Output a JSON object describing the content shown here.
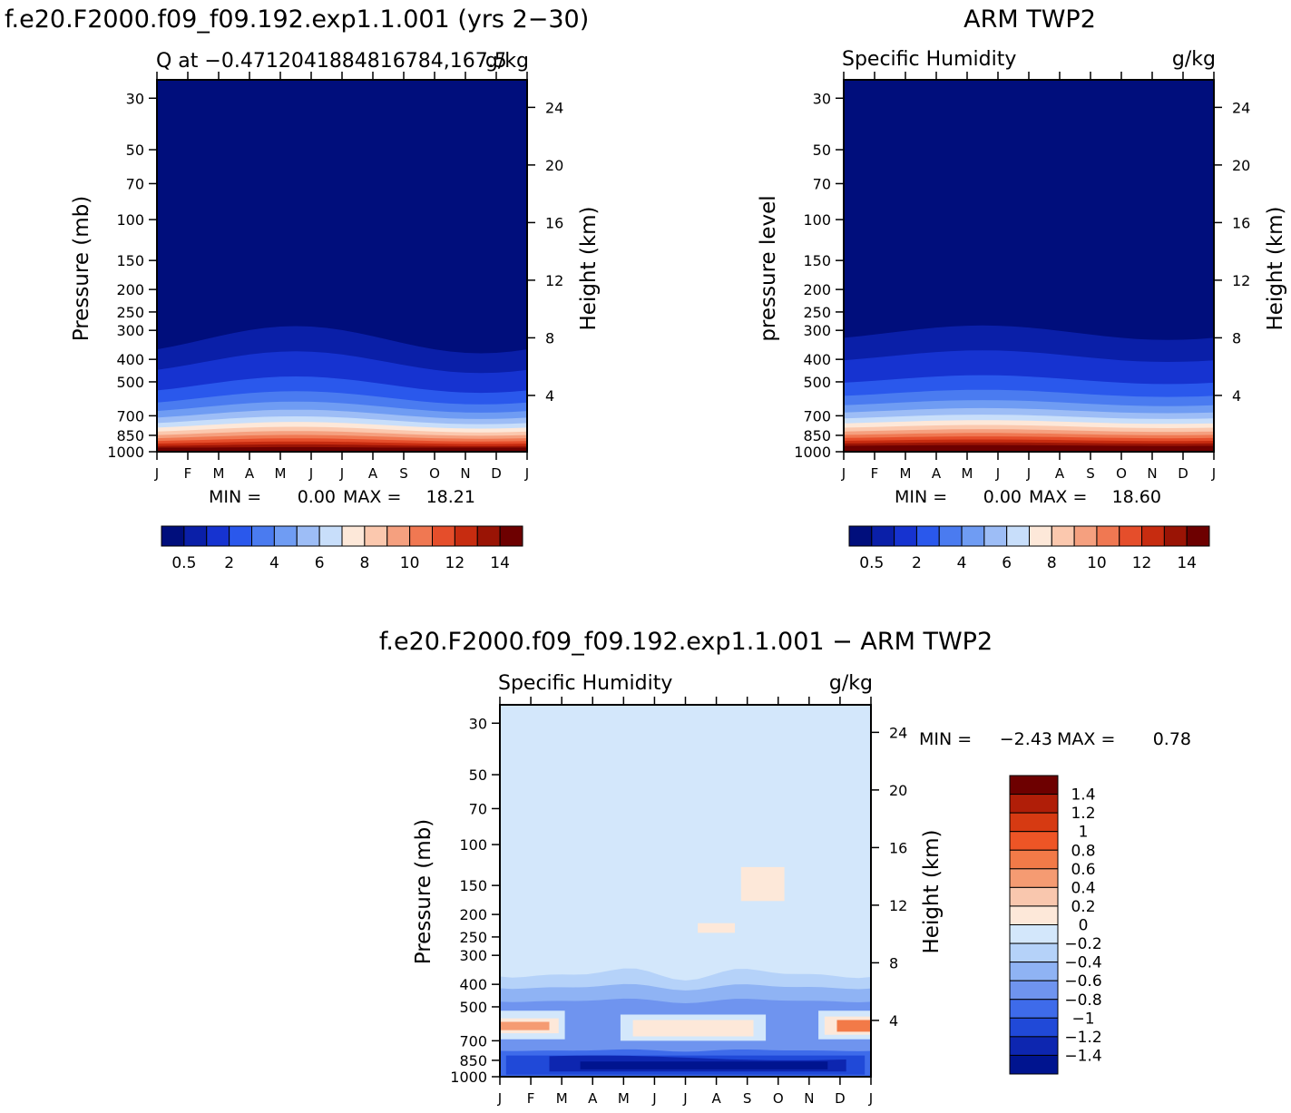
{
  "panels": [
    {
      "id": "model",
      "title": "f.e20.F2000.f09_f09.192.exp1.1.001 (yrs 2−30)",
      "subtitle_left": "Q at −0.4712041884816784,167.5",
      "subtitle_right": "g/kg",
      "left_axis_label": "Pressure (mb)",
      "right_axis_label": "Height (km)",
      "stats": {
        "min_label": "MIN =",
        "min": "0.00",
        "max_label": "MAX =",
        "max": "18.21"
      }
    },
    {
      "id": "obs",
      "title": "ARM TWP2",
      "subtitle_left": "Specific Humidity",
      "subtitle_right": "g/kg",
      "left_axis_label": "pressure level",
      "right_axis_label": "Height (km)",
      "stats": {
        "min_label": "MIN =",
        "min": "0.00",
        "max_label": "MAX =",
        "max": "18.60"
      }
    },
    {
      "id": "diff",
      "title": "f.e20.F2000.f09_f09.192.exp1.1.001 − ARM TWP2",
      "subtitle_left": "Specific Humidity",
      "subtitle_right": "g/kg",
      "left_axis_label": "Pressure (mb)",
      "right_axis_label": "Height (km)",
      "stats": {
        "min_label": "MIN =",
        "min": "−2.43",
        "max_label": "MAX =",
        "max": "0.78"
      }
    }
  ],
  "chart_data": {
    "type": "heatmap",
    "x_tick_labels": [
      "J",
      "F",
      "M",
      "A",
      "M",
      "J",
      "J",
      "A",
      "S",
      "O",
      "N",
      "D",
      "J"
    ],
    "pressure_ticks": [
      30,
      50,
      70,
      100,
      150,
      200,
      250,
      300,
      400,
      500,
      700,
      850,
      1000
    ],
    "pressure_tick_labels": [
      "30",
      "50",
      "70",
      "100",
      "150",
      "200",
      "250",
      "300",
      "400",
      "500",
      "700",
      "850",
      "1000"
    ],
    "height_ticks_km": [
      4,
      8,
      12,
      16,
      20,
      24
    ],
    "height_tick_labels": [
      "4",
      "8",
      "12",
      "16",
      "20",
      "24"
    ],
    "ylim_pressure_mb": [
      1000,
      25
    ],
    "abs_colorbar": {
      "colors": [
        "#000e7c",
        "#0a1fa8",
        "#1633d0",
        "#2a58ec",
        "#4a7bf0",
        "#6f9cf3",
        "#9dbdf6",
        "#c8defa",
        "#fde8d9",
        "#fbc8ae",
        "#f5a07f",
        "#f07852",
        "#e54e2b",
        "#c72c10",
        "#9a1405",
        "#6d0000"
      ],
      "tick_labels": [
        "0.5",
        "2",
        "4",
        "6",
        "8",
        "10",
        "12",
        "14"
      ]
    },
    "diff_colorbar": {
      "colors": [
        "#6d0000",
        "#b01e08",
        "#d63a12",
        "#ee5526",
        "#f27a48",
        "#f59b72",
        "#f9c7ae",
        "#fde8d9",
        "#d3e7fb",
        "#b5d2f9",
        "#8fb3f4",
        "#6f94ef",
        "#3e6bea",
        "#2049d8",
        "#0d26b0",
        "#00148f"
      ],
      "tick_labels": [
        "1.4",
        "1.2",
        "1",
        "0.8",
        "0.6",
        "0.4",
        "0.2",
        "0",
        "−0.2",
        "−0.4",
        "−0.6",
        "−0.8",
        "−1",
        "−1.2",
        "−1.4"
      ]
    },
    "profiles": {
      "model": {
        "surface": 16.5,
        "scale_km": 2.25,
        "scale_km_seasonal_amplitude": 0.12,
        "seasonal_phase_month": 4.5
      },
      "obs": {
        "surface": 17.5,
        "scale_km": 2.35,
        "scale_km_seasonal_amplitude": 0.06,
        "seasonal_phase_month": 4.5
      }
    },
    "diff_background": -0.1
  }
}
